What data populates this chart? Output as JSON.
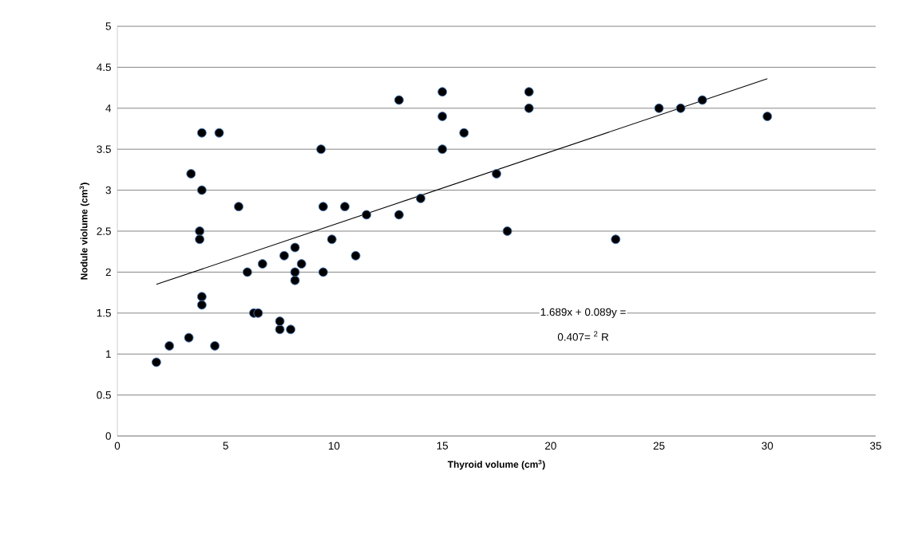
{
  "chart_data": {
    "type": "scatter",
    "xlabel": "Thyroid volume (cm$^{3}$)",
    "ylabel": "Nodule violume (cm$^{3}$)",
    "xlim": [
      0,
      35
    ],
    "ylim": [
      0,
      5
    ],
    "xticks": [
      0,
      5,
      10,
      15,
      20,
      25,
      30,
      35
    ],
    "yticks": [
      0,
      0.5,
      1,
      1.5,
      2,
      2.5,
      3,
      3.5,
      4,
      4.5,
      5
    ],
    "grid": "y",
    "marker": "circle",
    "annotations": [
      "1.689x + 0.089y =",
      "0.407= $^{2}$ R"
    ],
    "series": [
      {
        "color": "#000000",
        "x": [
          1.8,
          2.4,
          3.3,
          4.5,
          3.4,
          3.9,
          4.7,
          3.9,
          3.8,
          3.8,
          3.9,
          3.9,
          5.6,
          6.0,
          6.3,
          6.5,
          6.7,
          7.5,
          7.5,
          8.0,
          7.7,
          8.2,
          8.2,
          8.2,
          8.5,
          9.4,
          9.5,
          9.5,
          9.9,
          10.5,
          11.0,
          11.5,
          13.0,
          13.0,
          14.0,
          15.0,
          15.0,
          15.0,
          16.0,
          17.5,
          18.0,
          19.0,
          19.0,
          23.0,
          25.0,
          26.0,
          27.0,
          30.0
        ],
        "values": [
          0.9,
          1.1,
          1.2,
          1.1,
          3.2,
          3.7,
          3.7,
          3.0,
          2.5,
          2.4,
          1.7,
          1.6,
          2.8,
          2.0,
          1.5,
          1.5,
          2.1,
          1.3,
          1.4,
          1.3,
          2.2,
          2.3,
          1.9,
          2.0,
          2.1,
          3.5,
          2.8,
          2.0,
          2.4,
          2.8,
          2.2,
          2.7,
          4.1,
          2.7,
          2.9,
          4.2,
          3.9,
          3.5,
          3.7,
          3.2,
          2.5,
          4.2,
          4.0,
          2.4,
          4.0,
          4.0,
          4.1,
          3.9
        ]
      },
      {
        "type": "line",
        "color": "#000000",
        "marker": "none",
        "x": [
          1.8,
          30.0
        ],
        "values": [
          1.85,
          4.36
        ]
      }
    ]
  }
}
